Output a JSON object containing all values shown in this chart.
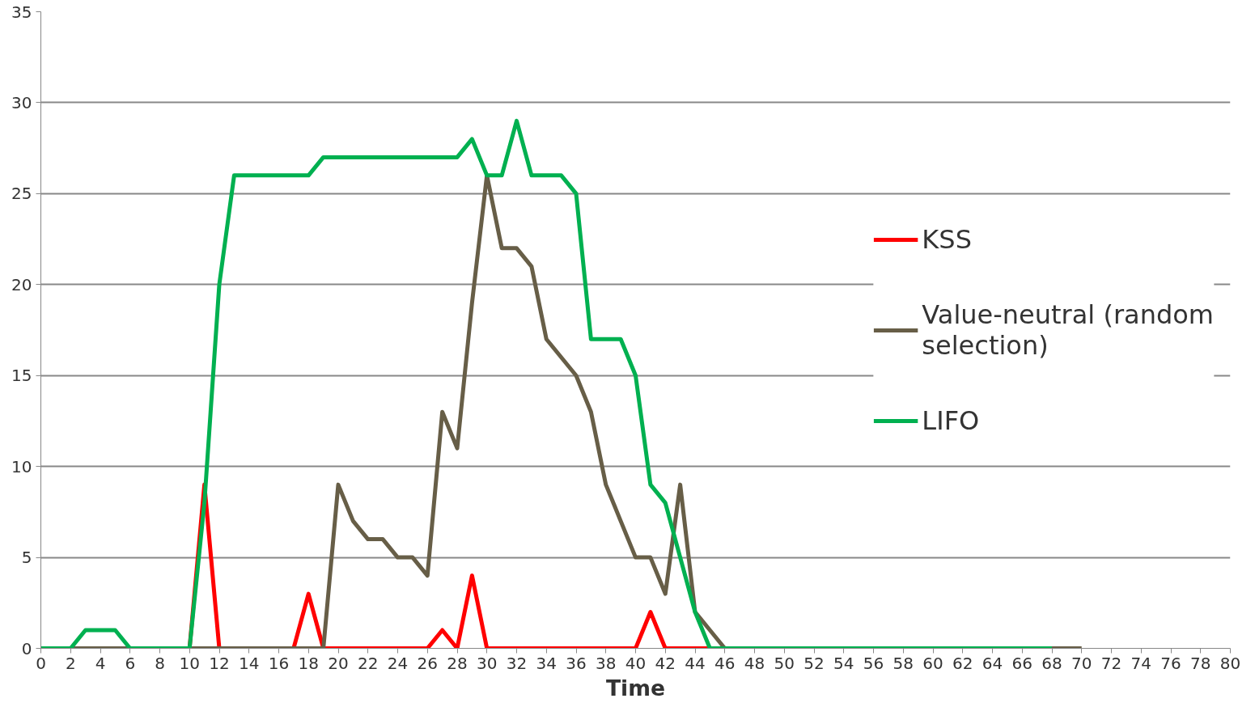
{
  "chart_data": {
    "type": "line",
    "xlabel": "Time",
    "xlim": [
      0,
      80
    ],
    "xticks": [
      0,
      2,
      4,
      6,
      8,
      10,
      12,
      14,
      16,
      18,
      20,
      22,
      24,
      26,
      28,
      30,
      32,
      34,
      36,
      38,
      40,
      42,
      44,
      46,
      48,
      50,
      52,
      54,
      56,
      58,
      60,
      62,
      64,
      66,
      68,
      70,
      72,
      74,
      76,
      78,
      80
    ],
    "ylim": [
      0,
      35
    ],
    "yticks": [
      0,
      5,
      10,
      15,
      20,
      25,
      30,
      35
    ],
    "grid": "y",
    "legend": "right",
    "marker": "none",
    "line_style": "solid",
    "series": [
      {
        "name": "KSS",
        "color": "#ff0000",
        "x": [
          9,
          10,
          11,
          12,
          13,
          14,
          15,
          16,
          17,
          18,
          19,
          20,
          21,
          22,
          23,
          24,
          25,
          26,
          27,
          28,
          29,
          30,
          31,
          32,
          33,
          34,
          35,
          36,
          37,
          38,
          39,
          40,
          41,
          42,
          43,
          44,
          45
        ],
        "values": [
          0,
          0,
          9,
          0,
          0,
          0,
          0,
          0,
          0,
          3,
          0,
          0,
          0,
          0,
          0,
          0,
          0,
          0,
          1,
          0,
          4,
          0,
          0,
          0,
          0,
          0,
          0,
          0,
          0,
          0,
          0,
          0,
          2,
          0,
          0,
          0,
          0
        ]
      },
      {
        "name": "Value-neutral (random selection)",
        "color": "#675e47",
        "x": [
          0,
          1,
          2,
          3,
          4,
          5,
          6,
          7,
          8,
          9,
          10,
          11,
          12,
          13,
          14,
          15,
          16,
          17,
          18,
          19,
          20,
          21,
          22,
          23,
          24,
          25,
          26,
          27,
          28,
          29,
          30,
          31,
          32,
          33,
          34,
          35,
          36,
          37,
          38,
          39,
          40,
          41,
          42,
          43,
          44,
          45,
          46,
          47,
          48,
          49,
          50,
          51,
          52,
          53,
          54,
          55,
          56,
          57,
          58,
          59,
          60,
          61,
          62,
          63,
          64,
          65,
          66,
          67,
          68,
          69,
          70
        ],
        "values": [
          0,
          0,
          0,
          0,
          0,
          0,
          0,
          0,
          0,
          0,
          0,
          0,
          0,
          0,
          0,
          0,
          0,
          0,
          0,
          0,
          9,
          7,
          6,
          6,
          5,
          5,
          4,
          13,
          11,
          19,
          26,
          22,
          22,
          21,
          17,
          16,
          15,
          13,
          9,
          7,
          5,
          5,
          3,
          9,
          2,
          1,
          0,
          0,
          0,
          0,
          0,
          0,
          0,
          0,
          0,
          0,
          0,
          0,
          0,
          0,
          0,
          0,
          0,
          0,
          0,
          0,
          0,
          0,
          0,
          0,
          0
        ]
      },
      {
        "name": "LIFO",
        "color": "#00b050",
        "x": [
          0,
          1,
          2,
          3,
          4,
          5,
          6,
          7,
          8,
          9,
          10,
          11,
          12,
          13,
          14,
          15,
          16,
          17,
          18,
          19,
          20,
          21,
          22,
          23,
          24,
          25,
          26,
          27,
          28,
          29,
          30,
          31,
          32,
          33,
          34,
          35,
          36,
          37,
          38,
          39,
          40,
          41,
          42,
          43,
          44,
          45,
          46,
          47,
          48,
          49,
          50,
          51,
          52,
          53,
          54,
          55,
          56,
          57,
          58,
          59,
          60,
          61,
          62,
          63,
          64,
          65,
          66,
          67,
          68
        ],
        "values": [
          0,
          0,
          0,
          1,
          1,
          1,
          0,
          0,
          0,
          0,
          0,
          8,
          20,
          26,
          26,
          26,
          26,
          26,
          26,
          27,
          27,
          27,
          27,
          27,
          27,
          27,
          27,
          27,
          27,
          28,
          26,
          26,
          29,
          26,
          26,
          26,
          25,
          17,
          17,
          17,
          15,
          9,
          8,
          5,
          2,
          0,
          0,
          0,
          0,
          0,
          0,
          0,
          0,
          0,
          0,
          0,
          0,
          0,
          0,
          0,
          0,
          0,
          0,
          0,
          0,
          0,
          0,
          0,
          0
        ]
      }
    ]
  }
}
